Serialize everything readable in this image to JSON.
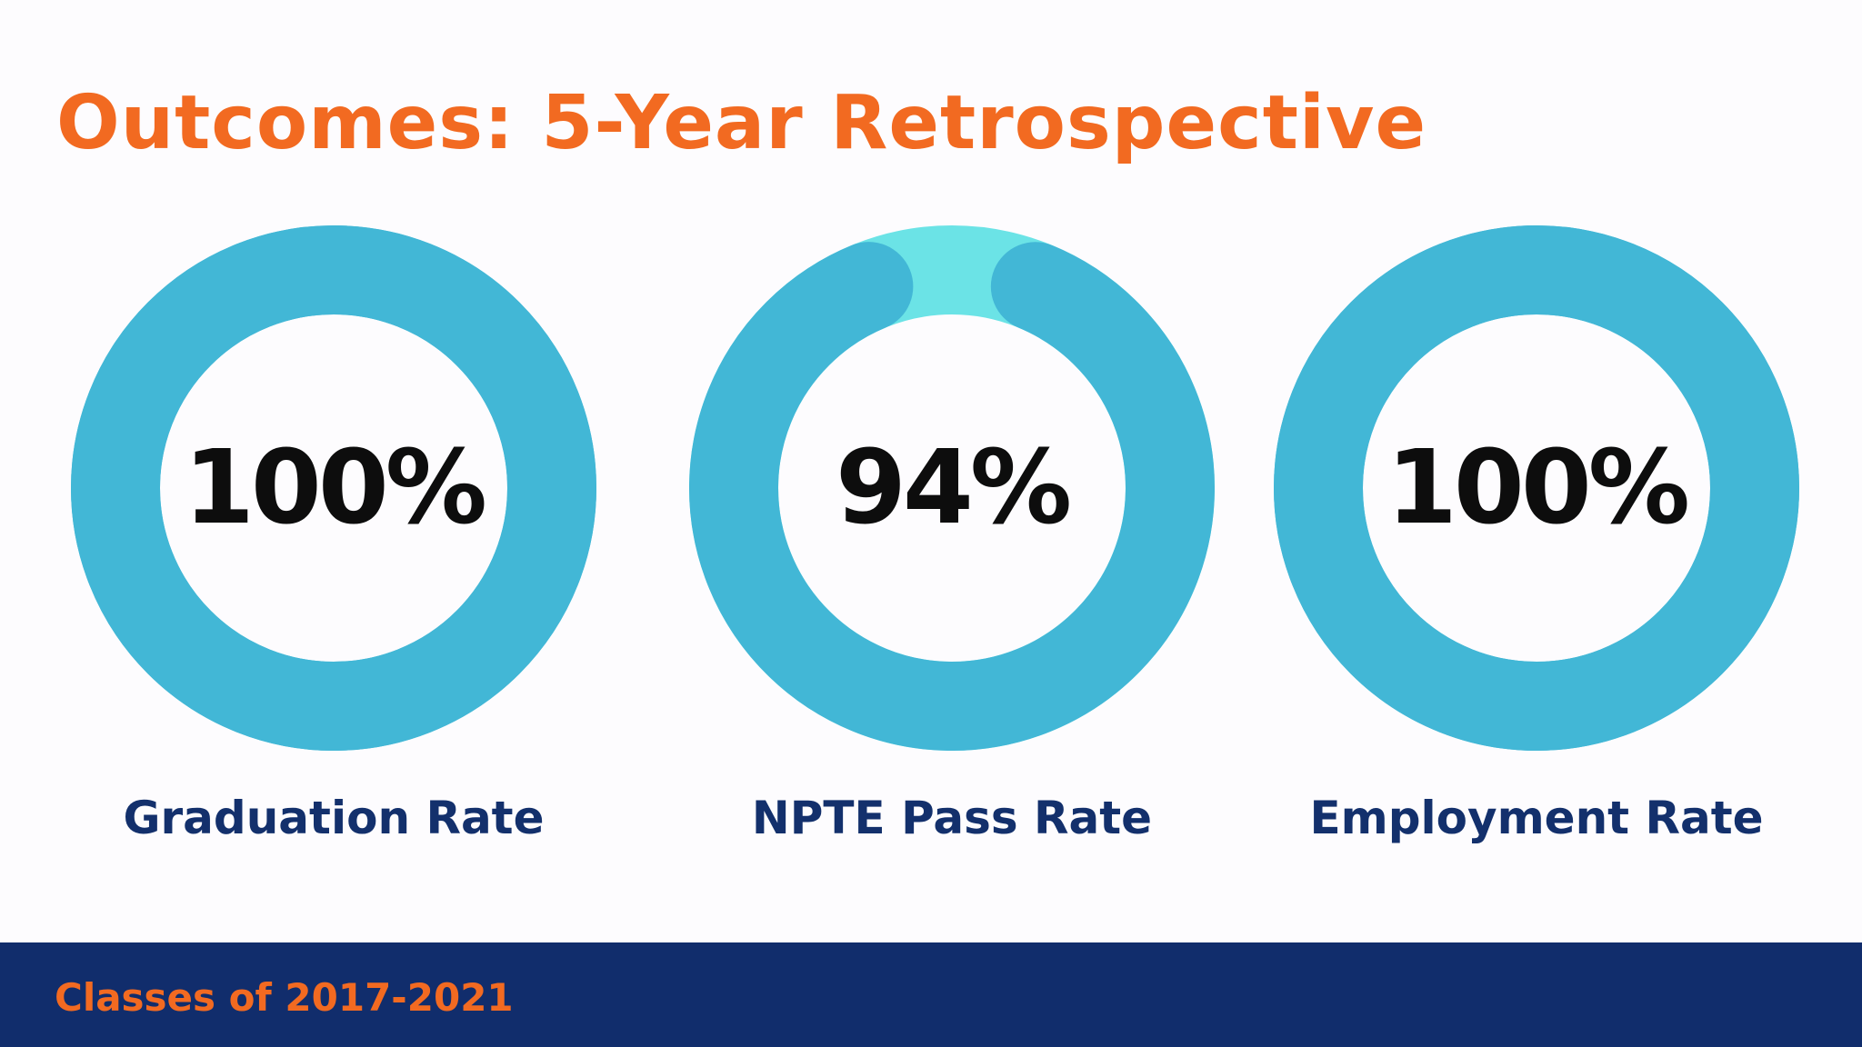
{
  "title": "Outcomes: 5-Year Retrospective",
  "footer": "Classes of 2017-2021",
  "colors": {
    "title": "#f26a21",
    "ring": "#42b7d6",
    "ring_remainder": "#6be3e6",
    "value_text": "#0d0d0d",
    "label": "#13306c",
    "footer_band": "#112d6c",
    "footer_text": "#f26a21",
    "background": "#fdfcfe"
  },
  "chart_data": {
    "type": "pie",
    "variant": "donut",
    "title": "Outcomes: 5-Year Retrospective",
    "subtitle": "Classes of 2017-2021",
    "unit": "%",
    "max": 100,
    "items": [
      {
        "label": "Graduation Rate",
        "value": 100,
        "display": "100%"
      },
      {
        "label": "NPTE Pass Rate",
        "value": 94,
        "display": "94%"
      },
      {
        "label": "Employment Rate",
        "value": 100,
        "display": "100%"
      }
    ]
  }
}
